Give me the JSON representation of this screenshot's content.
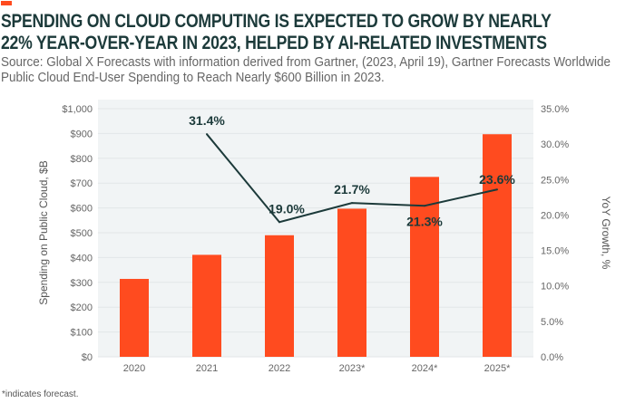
{
  "title": "SPENDING ON CLOUD COMPUTING IS EXPECTED TO GROW BY NEARLY 22% YEAR-OVER-YEAR IN 2023, HELPED BY AI-RELATED INVESTMENTS",
  "title_line1": "SPENDING ON CLOUD COMPUTING IS EXPECTED TO GROW BY NEARLY",
  "title_line2": "22% YEAR-OVER-YEAR IN 2023, HELPED BY AI-RELATED INVESTMENTS",
  "source": "Source: Global X Forecasts with information derived from Gartner, (2023, April 19), Gartner Forecasts Worldwide Public Cloud End-User Spending to Reach Nearly $600 Billion in 2023.",
  "footnote": "*indicates forecast.",
  "colors": {
    "bar": "#ff4b1f",
    "line": "#1c3a3a",
    "plot_bg": "#f1f4f5",
    "title": "#1c3a3a"
  },
  "chart_data": {
    "type": "bar+line",
    "categories": [
      "2020",
      "2021",
      "2022",
      "2023*",
      "2024*",
      "2025*"
    ],
    "series": [
      {
        "type": "bar",
        "axis": "left",
        "values": [
          314,
          411,
          490,
          597,
          725,
          897
        ]
      },
      {
        "type": "line",
        "axis": "right",
        "values": [
          null,
          31.4,
          19.0,
          21.7,
          21.3,
          23.6
        ],
        "labels": [
          "",
          "31.4%",
          "19.0%",
          "21.7%",
          "21.3%",
          "23.6%"
        ]
      }
    ],
    "ylabel": "Spending on Public Cloud, $B",
    "y2label": "YoY Growth, %",
    "ylim": [
      0,
      1000
    ],
    "y2lim": [
      0,
      35
    ],
    "yticks": [
      "$0",
      "$100",
      "$200",
      "$300",
      "$400",
      "$500",
      "$600",
      "$700",
      "$800",
      "$900",
      "$1,000"
    ],
    "y2ticks": [
      "0.0%",
      "5.0%",
      "10.0%",
      "15.0%",
      "20.0%",
      "25.0%",
      "30.0%",
      "35.0%"
    ],
    "grid": true
  }
}
